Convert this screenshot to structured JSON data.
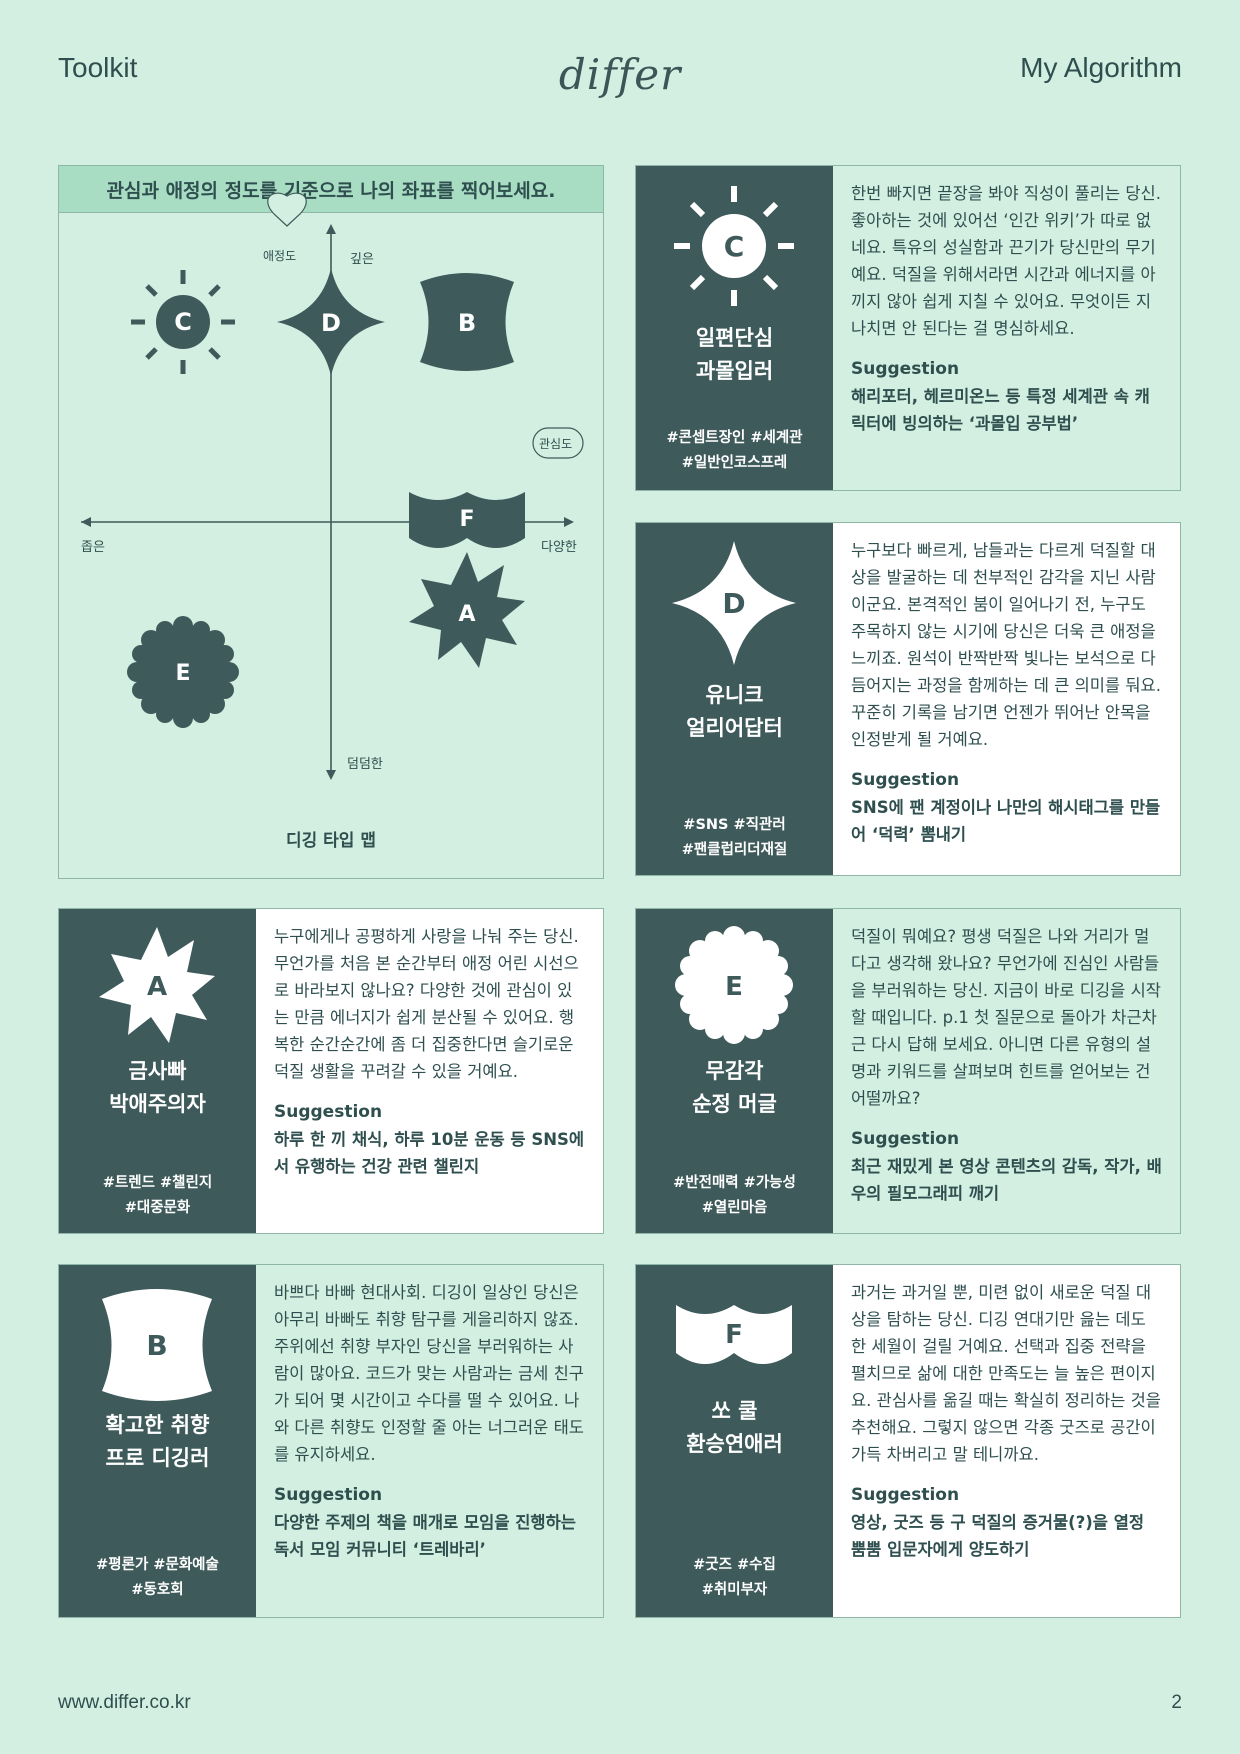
{
  "header": {
    "left": "Toolkit",
    "logo": "differ",
    "right": "My Algorithm"
  },
  "footer": {
    "url": "www.differ.co.kr",
    "page": "2"
  },
  "map": {
    "title": "관심과 애정의 정도를 기준으로 나의 좌표를 찍어보세요.",
    "caption": "디깅 타입 맵",
    "axis_top": "깊은",
    "axis_bottom": "덤덤한",
    "axis_left": "좁은",
    "axis_right": "다양한",
    "y_bubble": "애정도",
    "x_bubble": "관심도",
    "points": [
      "C",
      "D",
      "B",
      "F",
      "A",
      "E"
    ]
  },
  "cards": [
    {
      "letter": "C",
      "name1": "일편단심",
      "name2": "과몰입러",
      "tags1": "#콘셉트장인 #세계관",
      "tags2": "#일반인코스프레",
      "desc": "한번 빠지면 끝장을 봐야 직성이 풀리는 당신. 좋아하는 것에 있어선 ‘인간 위키’가 따로 없네요. 특유의 성실함과 끈기가 당신만의 무기예요. 덕질을 위해서라면 시간과 에너지를 아끼지 않아 쉽게 지칠 수 있어요. 무엇이든 지나치면 안 된다는 걸 명심하세요.",
      "sug_title": "Suggestion",
      "sug": "해리포터, 헤르미온느 등 특정 세계관 속 캐릭터에 빙의하는 ‘과몰입 공부법’"
    },
    {
      "letter": "D",
      "name1": "유니크",
      "name2": "얼리어답터",
      "tags1": "#SNS #직관러",
      "tags2": "#팬클럽리더재질",
      "desc": "누구보다 빠르게, 남들과는 다르게 덕질할 대상을 발굴하는 데 천부적인 감각을 지닌 사람이군요. 본격적인 붐이 일어나기 전, 누구도 주목하지 않는 시기에 당신은 더욱 큰 애정을 느끼죠. 원석이 반짝반짝 빛나는 보석으로 다듬어지는 과정을 함께하는 데 큰 의미를 둬요. 꾸준히 기록을 남기면 언젠가 뛰어난 안목을 인정받게 될 거예요.",
      "sug_title": "Suggestion",
      "sug": "SNS에 팬 계정이나 나만의 해시태그를 만들어 ‘덕력’ 뽐내기"
    },
    {
      "letter": "A",
      "name1": "금사빠",
      "name2": "박애주의자",
      "tags1": "#트렌드 #챌린지",
      "tags2": "#대중문화",
      "desc": "누구에게나 공평하게 사랑을 나눠 주는 당신. 무언가를 처음 본 순간부터 애정 어린 시선으로 바라보지 않나요? 다양한 것에 관심이 있는 만큼 에너지가 쉽게 분산될 수 있어요. 행복한 순간순간에 좀 더 집중한다면 슬기로운 덕질 생활을 꾸려갈 수 있을 거예요.",
      "sug_title": "Suggestion",
      "sug": "하루 한 끼 채식, 하루 10분 운동 등 SNS에서 유행하는 건강 관련 챌린지"
    },
    {
      "letter": "E",
      "name1": "무감각",
      "name2": "순정 머글",
      "tags1": "#반전매력 #가능성",
      "tags2": "#열린마음",
      "desc": "덕질이 뭐예요? 평생 덕질은 나와 거리가 멀다고 생각해 왔나요? 무언가에 진심인 사람들을 부러워하는 당신. 지금이 바로 디깅을 시작할 때입니다. p.1 첫 질문으로 돌아가 차근차근 다시 답해 보세요. 아니면 다른 유형의 설명과 키워드를 살펴보며 힌트를 얻어보는 건 어떨까요?",
      "sug_title": "Suggestion",
      "sug": "최근 재밌게 본 영상 콘텐츠의 감독, 작가, 배우의 필모그래피 깨기"
    },
    {
      "letter": "B",
      "name1": "확고한 취향",
      "name2": "프로 디깅러",
      "tags1": "#평론가 #문화예술",
      "tags2": "#동호회",
      "desc": "바쁘다 바빠 현대사회. 디깅이 일상인 당신은 아무리 바빠도 취향 탐구를 게을리하지 않죠. 주위에선 취향 부자인 당신을 부러워하는 사람이 많아요. 코드가 맞는 사람과는 금세 친구가 되어 몇 시간이고 수다를 떨 수 있어요. 나와 다른 취향도 인정할 줄 아는 너그러운 태도를 유지하세요.",
      "sug_title": "Suggestion",
      "sug": "다양한 주제의 책을 매개로 모임을 진행하는 독서 모임 커뮤니티 ‘트레바리’"
    },
    {
      "letter": "F",
      "name1": "쏘 쿨",
      "name2": "환승연애러",
      "tags1": "#굿즈 #수집",
      "tags2": "#취미부자",
      "desc": "과거는 과거일 뿐, 미련 없이 새로운 덕질 대상을 탐하는 당신. 디깅 연대기만 읊는 데도 한 세월이 걸릴 거예요. 선택과 집중 전략을 펼치므로 삶에 대한 만족도는 늘 높은 편이지요. 관심사를 옮길 때는 확실히 정리하는 것을 추천해요. 그렇지 않으면 각종 굿즈로 공간이 가득 차버리고 말 테니까요.",
      "sug_title": "Suggestion",
      "sug": "영상, 굿즈 등 구 덕질의 증거물(?)을 열정 뿜뿜 입문자에게 양도하기"
    }
  ],
  "colors": {
    "bg": "#d3efe1",
    "dark": "#3e5a5a",
    "head": "#a8ddc4",
    "border": "#8fb6a6"
  }
}
